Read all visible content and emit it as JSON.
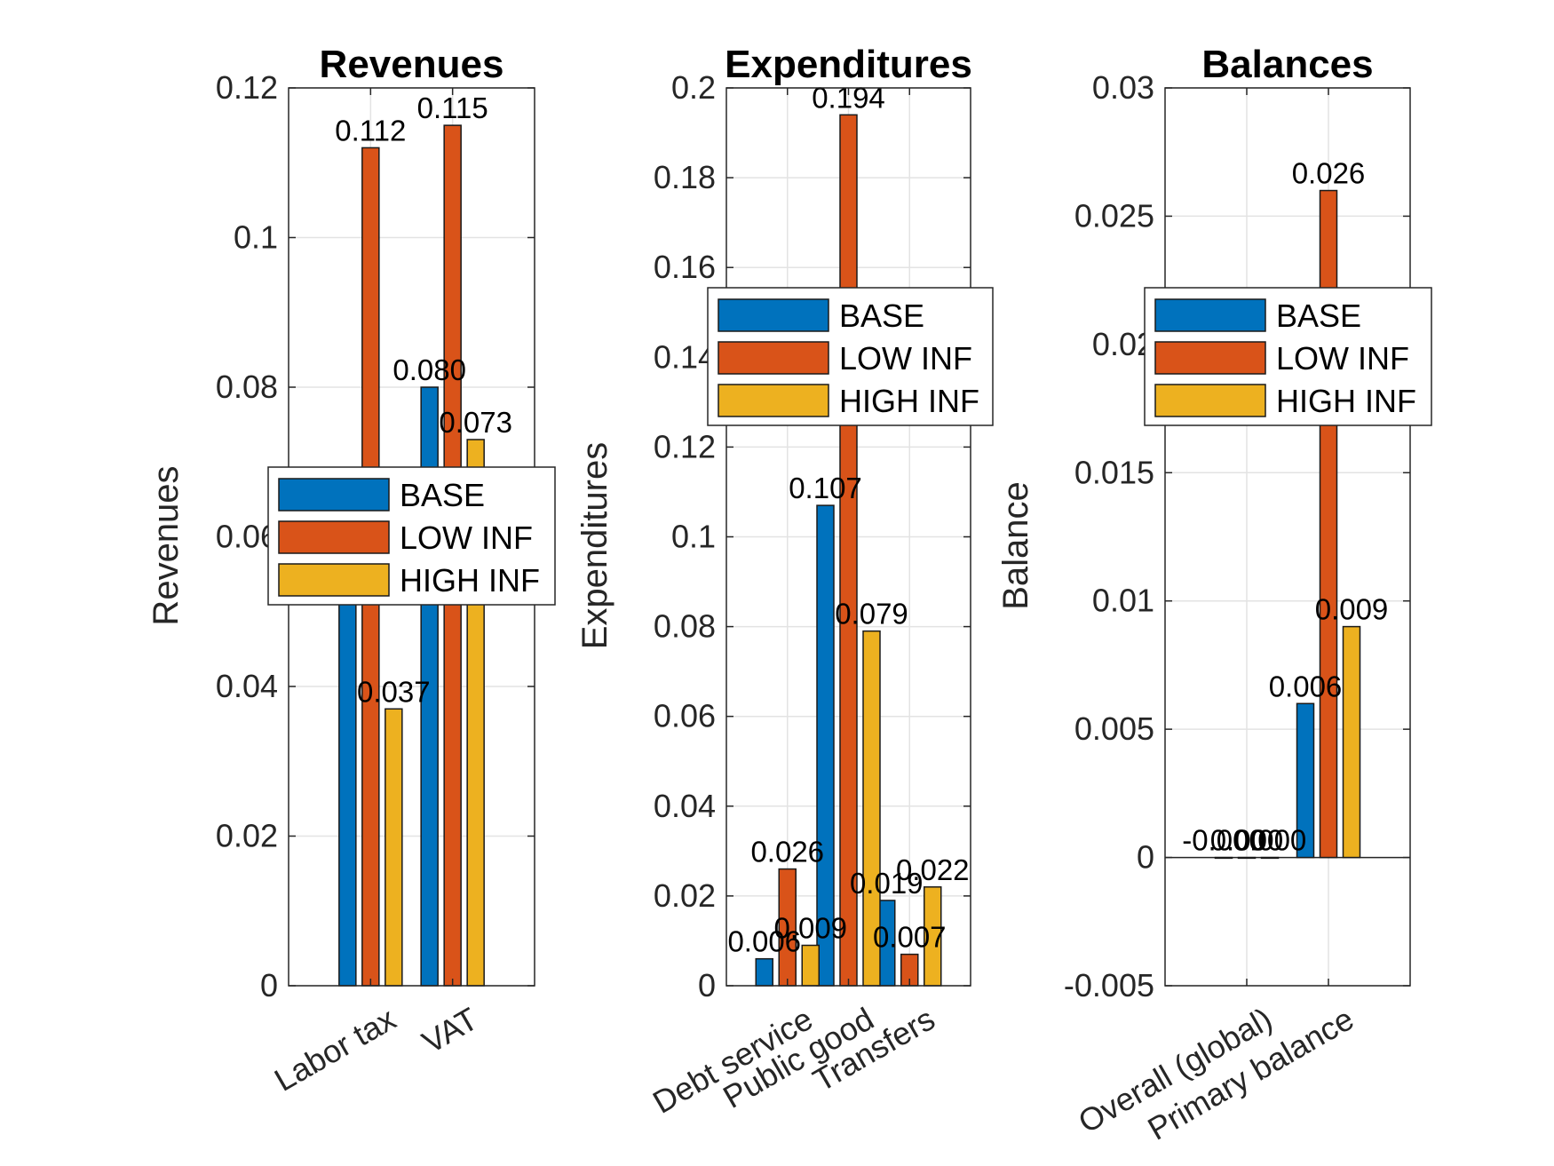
{
  "figure": {
    "series": [
      {
        "name": "BASE",
        "color": "#0072BD"
      },
      {
        "name": "LOW INF",
        "color": "#D95319"
      },
      {
        "name": "HIGH INF",
        "color": "#EDB120"
      }
    ]
  },
  "chart_data": [
    {
      "type": "bar",
      "title": "Revenues",
      "ylabel": "Revenues",
      "xlabel": "",
      "categories": [
        "Labor tax",
        "VAT"
      ],
      "series": [
        {
          "name": "BASE",
          "values": [
            0.055,
            0.08
          ],
          "labels": [
            "",
            "0.080"
          ]
        },
        {
          "name": "LOW INF",
          "values": [
            0.112,
            0.115
          ],
          "labels": [
            "0.112",
            "0.115"
          ]
        },
        {
          "name": "HIGH INF",
          "values": [
            0.037,
            0.073
          ],
          "labels": [
            "0.037",
            "0.073"
          ]
        }
      ],
      "ylim": [
        0,
        0.12
      ],
      "yticks": [
        "0",
        "0.02",
        "0.04",
        "0.06",
        "0.08",
        "0.1",
        "0.12"
      ],
      "grid": true,
      "legend": "center-right"
    },
    {
      "type": "bar",
      "title": "Expenditures",
      "ylabel": "Expenditures",
      "xlabel": "",
      "categories": [
        "Debt service",
        "Public good",
        "Transfers"
      ],
      "series": [
        {
          "name": "BASE",
          "values": [
            0.006,
            0.107,
            0.019
          ],
          "labels": [
            "0.006",
            "0.107",
            "0.019"
          ]
        },
        {
          "name": "LOW INF",
          "values": [
            0.026,
            0.194,
            0.007
          ],
          "labels": [
            "0.026",
            "0.194",
            "0.007"
          ]
        },
        {
          "name": "HIGH INF",
          "values": [
            0.009,
            0.079,
            0.022
          ],
          "labels": [
            "0.009",
            "0.079",
            "0.022"
          ]
        }
      ],
      "ylim": [
        0,
        0.2
      ],
      "yticks": [
        "0",
        "0.02",
        "0.04",
        "0.06",
        "0.08",
        "0.1",
        "0.12",
        "0.14",
        "0.16",
        "0.18",
        "0.2"
      ],
      "grid": true,
      "legend": "top-right"
    },
    {
      "type": "bar",
      "title": "Balances",
      "ylabel": "Balance",
      "xlabel": "",
      "categories": [
        "Overall (global)",
        "Primary balance"
      ],
      "series": [
        {
          "name": "BASE",
          "values": [
            0.0,
            0.006
          ],
          "labels": [
            "-0.000",
            "0.006"
          ]
        },
        {
          "name": "LOW INF",
          "values": [
            0.0,
            0.026
          ],
          "labels": [
            "0.000",
            "0.026"
          ]
        },
        {
          "name": "HIGH INF",
          "values": [
            0.0,
            0.009
          ],
          "labels": [
            "0.000",
            "0.009"
          ]
        }
      ],
      "ylim": [
        -0.005,
        0.03
      ],
      "yticks": [
        "-0.005",
        "0",
        "0.005",
        "0.01",
        "0.015",
        "0.02",
        "0.025",
        "0.03"
      ],
      "grid": true,
      "legend": "top-right"
    }
  ]
}
